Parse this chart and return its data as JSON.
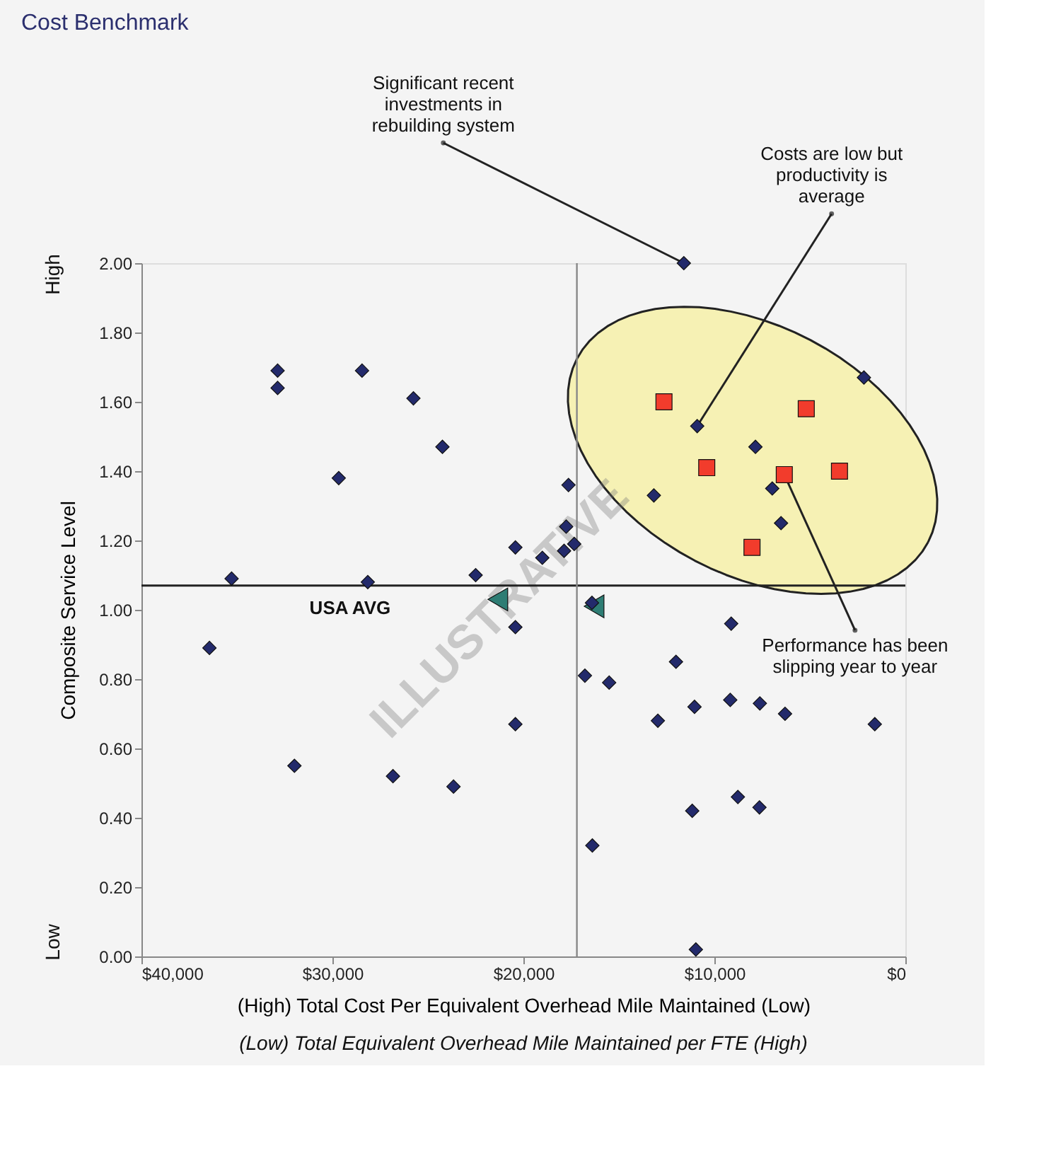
{
  "chart_data": {
    "type": "scatter",
    "title": "Cost Benchmark",
    "xlabel": "(High) Total Cost Per Equivalent Overhead Mile Maintained (Low)",
    "ylabel": "Composite Service Level",
    "xlim": [
      40000,
      0
    ],
    "xticks": [
      {
        "value": 40000,
        "label": "$40,000"
      },
      {
        "value": 30000,
        "label": "$30,000"
      },
      {
        "value": 20000,
        "label": "$20,000"
      },
      {
        "value": 10000,
        "label": "$10,000"
      },
      {
        "value": 0,
        "label": "$0"
      }
    ],
    "ylim": [
      0,
      2
    ],
    "yticks": [
      {
        "value": 0,
        "label": "0.00"
      },
      {
        "value": 0.2,
        "label": "0.20"
      },
      {
        "value": 0.4,
        "label": "0.40"
      },
      {
        "value": 0.6,
        "label": "0.60"
      },
      {
        "value": 0.8,
        "label": "0.80"
      },
      {
        "value": 1,
        "label": "1.00"
      },
      {
        "value": 1.2,
        "label": "1.20"
      },
      {
        "value": 1.4,
        "label": "1.40"
      },
      {
        "value": 1.6,
        "label": "1.60"
      },
      {
        "value": 1.8,
        "label": "1.80"
      },
      {
        "value": 2,
        "label": "2.00"
      }
    ],
    "grid": false,
    "series": [
      {
        "color": "#232a6b",
        "marker": "diamond",
        "x": [
          2170,
          6510,
          6970,
          7850,
          10900,
          13170,
          11600,
          9120,
          12010,
          17640,
          17760,
          17340,
          17870,
          19010,
          20420,
          20420,
          16410,
          1600,
          6300,
          7620,
          7640,
          8770,
          9170,
          11040,
          11160,
          10970,
          12960,
          15510,
          16780,
          16390,
          20420,
          22500,
          24240,
          25760,
          28450,
          29670,
          28150,
          32870,
          32870,
          35280,
          36440,
          23660,
          26830,
          31990
        ],
        "values": [
          1.67,
          1.25,
          1.35,
          1.47,
          1.53,
          1.33,
          2.0,
          0.96,
          0.85,
          1.36,
          1.24,
          1.19,
          1.17,
          1.15,
          1.18,
          0.95,
          1.02,
          0.67,
          0.7,
          0.73,
          0.43,
          0.46,
          0.74,
          0.72,
          0.42,
          0.02,
          0.68,
          0.79,
          0.81,
          0.32,
          0.67,
          1.1,
          1.47,
          1.61,
          1.69,
          1.38,
          1.08,
          1.69,
          1.64,
          1.09,
          0.89,
          0.49,
          0.52,
          0.55
        ]
      },
      {
        "color": "#f23c2c",
        "marker": "square",
        "x": [
          3450,
          5190,
          6340,
          8030,
          10400,
          12640
        ],
        "values": [
          1.4,
          1.58,
          1.39,
          1.18,
          1.41,
          1.6
        ]
      },
      {
        "color": "#2e7d74",
        "marker": "triangle",
        "x": [
          16300,
          21340
        ],
        "values": [
          1.01,
          1.03
        ]
      }
    ],
    "ref_lines": [
      {
        "axis": "y",
        "value": 1.07,
        "label": "USA AVG",
        "color": "#222222"
      },
      {
        "axis": "x",
        "value": 17200,
        "color": "#888888"
      }
    ],
    "annotations": [
      "High",
      "Low",
      {
        "text": "Costs are low but productivity is average",
        "x": 10900,
        "y": 1.53
      },
      {
        "text": "Performance has been slipping year to year",
        "x": 6340,
        "y": 1.39
      },
      {
        "text": "Significant recent investments in rebuilding system",
        "x": 11600,
        "y": 2.0
      },
      "ILLUSTRATIVE",
      "(Low) Total Equivalent Overhead Mile Maintained per FTE (High)"
    ]
  }
}
